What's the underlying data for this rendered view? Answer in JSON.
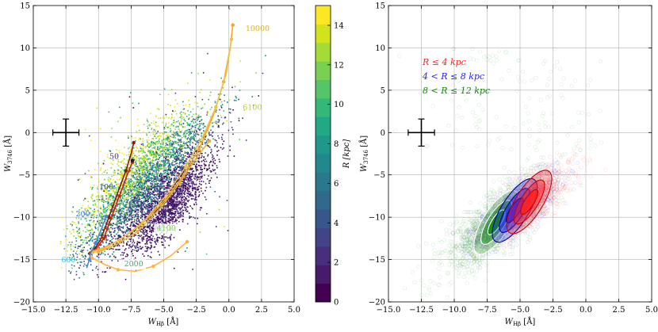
{
  "chart_data": [
    {
      "type": "scatter",
      "title": "",
      "xlabel": "W_Hβ [Å]",
      "ylabel": "W_3746 [Å]",
      "xlim": [
        -15,
        5
      ],
      "ylim": [
        -20,
        15
      ],
      "xticks": [
        "−15.0",
        "−12.5",
        "−10.0",
        "−7.5",
        "−5.0",
        "−2.5",
        "0.0",
        "2.5",
        "5.0"
      ],
      "yticks": [
        "−20",
        "−15",
        "−10",
        "−5",
        "0",
        "5",
        "10",
        "15"
      ],
      "grid": true,
      "error_bar": {
        "x": -12.5,
        "y": 0,
        "xerr": 1.0,
        "yerr": 1.6
      },
      "colorbar": {
        "label": "R [kpc]",
        "range": [
          0,
          15
        ],
        "ticks": [
          "0",
          "2",
          "4",
          "6",
          "8",
          "10",
          "12",
          "14"
        ],
        "colors": [
          "#440154",
          "#481a6c",
          "#472f7d",
          "#414487",
          "#39568c",
          "#31688e",
          "#2a788e",
          "#23888e",
          "#1f988b",
          "#22a884",
          "#35b779",
          "#54c568",
          "#7ad151",
          "#a5db36",
          "#d2e21b",
          "#fde725"
        ]
      },
      "model_tracks": [
        {
          "name": "track-50",
          "color": "#8b1a00",
          "points": [
            [
              -7.3,
              -1.2
            ],
            [
              -7.5,
              -2.5
            ],
            [
              -7.9,
              -4.5
            ],
            [
              -8.5,
              -7
            ],
            [
              -9.2,
              -10
            ],
            [
              -9.8,
              -12.5
            ],
            [
              -10.3,
              -13.8
            ],
            [
              -10.8,
              -14.3
            ]
          ]
        },
        {
          "name": "track-100",
          "color": "#cc2200",
          "points": [
            [
              -7.4,
              -3.5
            ],
            [
              -7.8,
              -5
            ],
            [
              -8.4,
              -7.5
            ],
            [
              -9,
              -10
            ],
            [
              -9.6,
              -12.5
            ],
            [
              -10.2,
              -13.8
            ],
            [
              -10.6,
              -14.2
            ]
          ]
        },
        {
          "name": "track-10000",
          "color": "#f5a623",
          "points": [
            [
              0.3,
              12.7
            ],
            [
              0.1,
              10
            ],
            [
              -0.4,
              6
            ],
            [
              -1.2,
              2
            ],
            [
              -2.3,
              -2
            ],
            [
              -3.7,
              -5.5
            ],
            [
              -5.2,
              -8.5
            ],
            [
              -6.8,
              -11
            ],
            [
              -8.4,
              -12.7
            ],
            [
              -9.6,
              -13.6
            ],
            [
              -10.5,
              -14
            ]
          ]
        },
        {
          "name": "track-6100",
          "color": "#f0c040",
          "points": [
            [
              0.2,
              11
            ],
            [
              -0.2,
              7
            ],
            [
              -1,
              3
            ],
            [
              -2,
              -0.5
            ],
            [
              -3.3,
              -4
            ],
            [
              -4.9,
              -7.6
            ],
            [
              -6.6,
              -10.6
            ],
            [
              -8.3,
              -12.6
            ],
            [
              -9.7,
              -13.8
            ],
            [
              -10.6,
              -14.3
            ]
          ]
        },
        {
          "name": "track-4100",
          "color": "#e8b030",
          "points": [
            [
              -1.5,
              -1
            ],
            [
              -2.5,
              -3
            ],
            [
              -3.8,
              -6
            ],
            [
              -5.3,
              -9
            ],
            [
              -7,
              -11.7
            ],
            [
              -8.6,
              -13.2
            ],
            [
              -10,
              -14.1
            ]
          ]
        },
        {
          "name": "track-2000",
          "color": "#ffb347",
          "points": [
            [
              -10.5,
              -14.8
            ],
            [
              -9.5,
              -15.6
            ],
            [
              -8.5,
              -16.2
            ],
            [
              -7.2,
              -16.4
            ],
            [
              -5.8,
              -15.8
            ],
            [
              -4.5,
              -14.6
            ],
            [
              -3.2,
              -12.9
            ]
          ]
        },
        {
          "name": "track-600",
          "color": "#4488dd",
          "points": [
            [
              -9.4,
              -9.9
            ],
            [
              -9.8,
              -11.5
            ],
            [
              -10.2,
              -13
            ],
            [
              -10.6,
              -14.2
            ],
            [
              -10.7,
              -15
            ],
            [
              -10.9,
              -16
            ]
          ]
        }
      ],
      "annotations": [
        {
          "text": "10000",
          "x": 2.2,
          "y": 12,
          "color": "#e0b020"
        },
        {
          "text": "6100",
          "x": 1.8,
          "y": 2.7,
          "color": "#b9d02a"
        },
        {
          "text": "50",
          "x": -8.8,
          "y": -3.1,
          "color": "#3a2a7a"
        },
        {
          "text": "100",
          "x": -9.4,
          "y": -6.7,
          "color": "#3f4fa0"
        },
        {
          "text": "200",
          "x": -11.2,
          "y": -9.9,
          "color": "#4a7fd0"
        },
        {
          "text": "4100",
          "x": -4.8,
          "y": -11.6,
          "color": "#7ad151"
        },
        {
          "text": "600",
          "x": -12.3,
          "y": -15.3,
          "color": "#33bbdd"
        },
        {
          "text": "2000",
          "x": -7.3,
          "y": -15.8,
          "color": "#35b779"
        }
      ]
    },
    {
      "type": "scatter",
      "title": "",
      "xlabel": "W_Hβ [Å]",
      "ylabel": "W_3746 [Å]",
      "xlim": [
        -15,
        5
      ],
      "ylim": [
        -20,
        15
      ],
      "xticks": [
        "−15.0",
        "−12.5",
        "−10.0",
        "−7.5",
        "−5.0",
        "−2.5",
        "0.0",
        "2.5",
        "5.0"
      ],
      "yticks": [
        "−20",
        "−15",
        "−10",
        "−5",
        "0",
        "5",
        "10",
        "15"
      ],
      "grid": true,
      "error_bar": {
        "x": -12.5,
        "y": 0,
        "xerr": 1.0,
        "yerr": 1.6
      },
      "legend": "top-left",
      "series": [
        {
          "name": "R ≤ 4 kpc",
          "color": "#ff2222",
          "center": [
            -4.3,
            -8.2
          ]
        },
        {
          "name": "4 < R ≤ 8 kpc",
          "color": "#2222ff",
          "center": [
            -5.4,
            -9.2
          ]
        },
        {
          "name": "8 < R ≤ 12 kpc",
          "color": "#118811",
          "center": [
            -6.8,
            -10.6
          ]
        }
      ]
    }
  ],
  "labels": {
    "xlabel_main": "W",
    "xlabel_sub": "Hβ",
    "xlabel_unit": " [Å]",
    "ylabel_main": "W",
    "ylabel_sub": "3746",
    "ylabel_unit": " [Å]",
    "cbar_label": "R [kpc]",
    "legend1": "R ≤ 4 kpc",
    "legend2": "4 < R ≤ 8 kpc",
    "legend3": "8 < R ≤ 12 kpc"
  }
}
